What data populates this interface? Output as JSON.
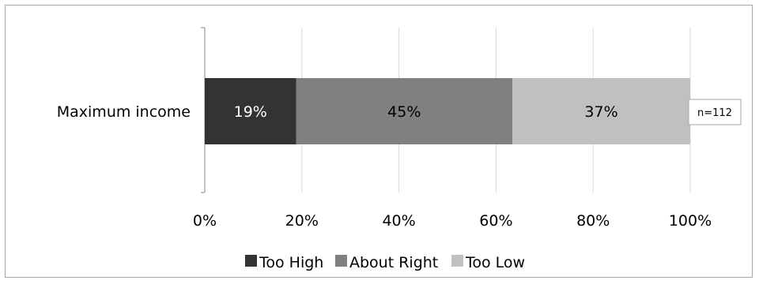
{
  "chart_data": {
    "type": "bar",
    "orientation": "horizontal",
    "stacked": true,
    "percent_stacked": true,
    "categories": [
      "Maximum income"
    ],
    "series": [
      {
        "name": "Too High",
        "values": [
          19
        ],
        "label": "19%",
        "color": "#333333",
        "label_color": "#ffffff"
      },
      {
        "name": "About Right",
        "values": [
          45
        ],
        "label": "45%",
        "color": "#808080",
        "label_color": "#000000"
      },
      {
        "name": "Too Low",
        "values": [
          37
        ],
        "label": "37%",
        "color": "#c0c0c0",
        "label_color": "#000000"
      }
    ],
    "xlim": [
      0,
      100
    ],
    "x_ticks": [
      "0%",
      "20%",
      "40%",
      "60%",
      "80%",
      "100%"
    ],
    "grid": true,
    "legend_position": "bottom",
    "annotation": "n=112"
  }
}
